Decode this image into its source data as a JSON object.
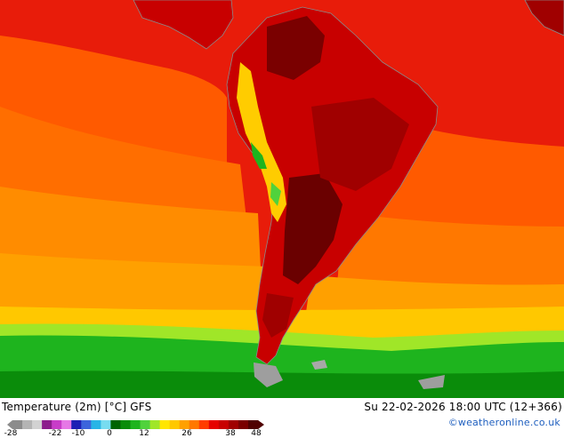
{
  "map": {
    "title": "Temperature (2m) [°C] GFS",
    "valid_time": "Su 22-02-2026 18:00 UTC (12+366)",
    "credit": "©weatheronline.co.uk",
    "region_icon": "south-america-map",
    "units": "°C"
  },
  "legend": {
    "tick_labels": [
      "-28",
      "-22",
      "-10",
      "0",
      "12",
      "26",
      "38",
      "48"
    ],
    "colors": [
      "#8c8c8c",
      "#b4b4b4",
      "#d2d2d2",
      "#8c1e8c",
      "#c83cc8",
      "#e678e6",
      "#1e1eb4",
      "#3c64dc",
      "#28b4e6",
      "#78dcf0",
      "#006400",
      "#0a8c0a",
      "#1eb41e",
      "#50d23c",
      "#a0e628",
      "#ffe600",
      "#ffc800",
      "#ffa000",
      "#ff7800",
      "#ff3c00",
      "#e60000",
      "#c80000",
      "#a00000",
      "#7a0000",
      "#500000"
    ],
    "palette": {
      "ocean_hot": "#e81c0a",
      "ocean_warm": "#ff5a00",
      "ocean_mild": "#ff8c00",
      "ocean_cool": "#ffb000",
      "ocean_cold": "#00d200",
      "land_hot": "#c80000",
      "land_hottest": "#7a0000",
      "andes": "#ffcc00",
      "antarctic": "#9e9e9e"
    }
  }
}
